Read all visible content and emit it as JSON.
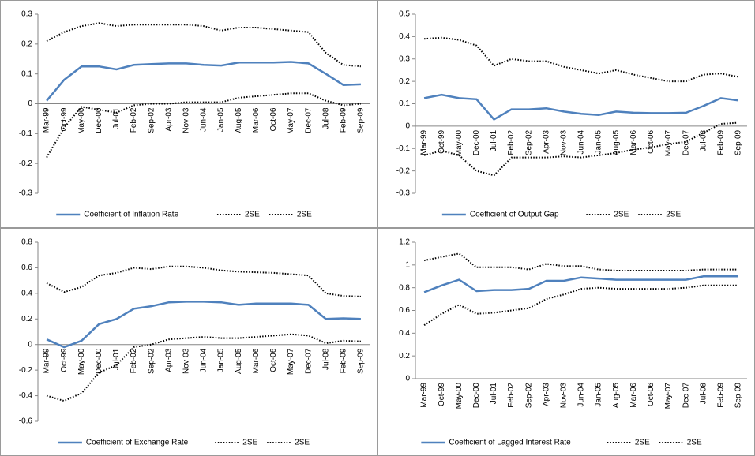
{
  "chart_data": [
    {
      "type": "line",
      "legend": "bottom",
      "ylim": [
        -0.3,
        0.3
      ],
      "yticks": [
        -0.3,
        -0.2,
        -0.1,
        0,
        0.1,
        0.2,
        0.3
      ],
      "categories": [
        "Mar-99",
        "Oct-99",
        "May-00",
        "Dec-00",
        "Jul-01",
        "Feb-02",
        "Sep-02",
        "Apr-03",
        "Nov-03",
        "Jun-04",
        "Jan-05",
        "Aug-05",
        "Mar-06",
        "Oct-06",
        "May-07",
        "Dec-07",
        "Jul-08",
        "Feb-09",
        "Sep-09"
      ],
      "series": [
        {
          "name": "Coefficient of Inflation Rate",
          "color": "#4f81bd",
          "style": "solid",
          "values": [
            0.01,
            0.08,
            0.125,
            0.125,
            0.115,
            0.13,
            0.133,
            0.135,
            0.135,
            0.13,
            0.128,
            0.138,
            0.138,
            0.138,
            0.14,
            0.135,
            0.1,
            0.063,
            0.065
          ]
        },
        {
          "name": "2SE",
          "color": "#000000",
          "style": "dotted",
          "values": [
            0.21,
            0.24,
            0.26,
            0.27,
            0.26,
            0.265,
            0.265,
            0.265,
            0.265,
            0.26,
            0.245,
            0.255,
            0.255,
            0.25,
            0.245,
            0.24,
            0.17,
            0.13,
            0.125
          ]
        },
        {
          "name": "2SE",
          "color": "#000000",
          "style": "dotted",
          "values": [
            -0.18,
            -0.08,
            -0.01,
            -0.02,
            -0.03,
            -0.005,
            0,
            0,
            0.005,
            0.005,
            0.005,
            0.02,
            0.025,
            0.03,
            0.035,
            0.035,
            0.01,
            -0.005,
            0
          ]
        }
      ]
    },
    {
      "type": "line",
      "legend": "bottom",
      "ylim": [
        -0.3,
        0.5
      ],
      "yticks": [
        -0.3,
        -0.2,
        -0.1,
        0,
        0.1,
        0.2,
        0.3,
        0.4,
        0.5
      ],
      "categories": [
        "Mar-99",
        "Oct-99",
        "May-00",
        "Dec-00",
        "Jul-01",
        "Feb-02",
        "Sep-02",
        "Apr-03",
        "Nov-03",
        "Jun-04",
        "Jan-05",
        "Aug-05",
        "Mar-06",
        "Oct-06",
        "May-07",
        "Dec-07",
        "Jul-08",
        "Feb-09",
        "Sep-09"
      ],
      "series": [
        {
          "name": "Coefficient of Output Gap",
          "color": "#4f81bd",
          "style": "solid",
          "values": [
            0.125,
            0.14,
            0.125,
            0.12,
            0.03,
            0.075,
            0.075,
            0.08,
            0.065,
            0.055,
            0.05,
            0.065,
            0.06,
            0.058,
            0.058,
            0.06,
            0.09,
            0.125,
            0.115
          ]
        },
        {
          "name": "2SE",
          "color": "#000000",
          "style": "dotted",
          "values": [
            0.39,
            0.395,
            0.385,
            0.36,
            0.27,
            0.3,
            0.29,
            0.29,
            0.265,
            0.25,
            0.235,
            0.25,
            0.23,
            0.215,
            0.2,
            0.2,
            0.23,
            0.235,
            0.22
          ]
        },
        {
          "name": "2SE",
          "color": "#000000",
          "style": "dotted",
          "values": [
            -0.13,
            -0.11,
            -0.13,
            -0.2,
            -0.22,
            -0.14,
            -0.14,
            -0.14,
            -0.135,
            -0.14,
            -0.13,
            -0.12,
            -0.105,
            -0.095,
            -0.08,
            -0.07,
            -0.03,
            0.01,
            0.015
          ]
        }
      ]
    },
    {
      "type": "line",
      "legend": "bottom",
      "ylim": [
        -0.6,
        0.8
      ],
      "yticks": [
        -0.6,
        -0.4,
        -0.2,
        0,
        0.2,
        0.4,
        0.6,
        0.8
      ],
      "categories": [
        "Mar-99",
        "Oct-99",
        "May-00",
        "Dec-00",
        "Jul-01",
        "Feb-02",
        "Sep-02",
        "Apr-03",
        "Nov-03",
        "Jun-04",
        "Jan-05",
        "Aug-05",
        "Mar-06",
        "Oct-06",
        "May-07",
        "Dec-07",
        "Jul-08",
        "Feb-09",
        "Sep-09"
      ],
      "series": [
        {
          "name": "Coefficient of Exchange Rate",
          "color": "#4f81bd",
          "style": "solid",
          "values": [
            0.04,
            -0.02,
            0.03,
            0.16,
            0.2,
            0.28,
            0.3,
            0.33,
            0.335,
            0.335,
            0.33,
            0.31,
            0.32,
            0.32,
            0.32,
            0.31,
            0.2,
            0.205,
            0.2
          ]
        },
        {
          "name": "2SE",
          "color": "#000000",
          "style": "dotted",
          "values": [
            0.48,
            0.41,
            0.45,
            0.54,
            0.56,
            0.6,
            0.59,
            0.61,
            0.61,
            0.6,
            0.58,
            0.57,
            0.565,
            0.56,
            0.55,
            0.54,
            0.4,
            0.38,
            0.375
          ]
        },
        {
          "name": "2SE",
          "color": "#000000",
          "style": "dotted",
          "values": [
            -0.4,
            -0.44,
            -0.38,
            -0.22,
            -0.16,
            -0.02,
            0,
            0.04,
            0.05,
            0.06,
            0.05,
            0.05,
            0.06,
            0.07,
            0.08,
            0.07,
            0.01,
            0.03,
            0.025
          ]
        }
      ]
    },
    {
      "type": "line",
      "legend": "bottom",
      "ylim": [
        0,
        1.2
      ],
      "yticks": [
        0,
        0.2,
        0.4,
        0.6,
        0.8,
        1,
        1.2
      ],
      "categories": [
        "Mar-99",
        "Oct-99",
        "May-00",
        "Dec-00",
        "Jul-01",
        "Feb-02",
        "Sep-02",
        "Apr-03",
        "Nov-03",
        "Jun-04",
        "Jan-05",
        "Aug-05",
        "Mar-06",
        "Oct-06",
        "May-07",
        "Dec-07",
        "Jul-08",
        "Feb-09",
        "Sep-09"
      ],
      "series": [
        {
          "name": "Coefficient of Lagged Interest Rate",
          "color": "#4f81bd",
          "style": "solid",
          "values": [
            0.76,
            0.82,
            0.87,
            0.77,
            0.78,
            0.78,
            0.79,
            0.86,
            0.86,
            0.89,
            0.88,
            0.87,
            0.87,
            0.87,
            0.87,
            0.87,
            0.9,
            0.9,
            0.9
          ]
        },
        {
          "name": "2SE",
          "color": "#000000",
          "style": "dotted",
          "values": [
            1.04,
            1.07,
            1.1,
            0.98,
            0.98,
            0.98,
            0.96,
            1.01,
            0.99,
            0.99,
            0.96,
            0.95,
            0.95,
            0.95,
            0.95,
            0.95,
            0.96,
            0.96,
            0.96
          ]
        },
        {
          "name": "2SE",
          "color": "#000000",
          "style": "dotted",
          "values": [
            0.47,
            0.57,
            0.65,
            0.57,
            0.58,
            0.6,
            0.62,
            0.7,
            0.74,
            0.79,
            0.8,
            0.79,
            0.79,
            0.79,
            0.79,
            0.8,
            0.82,
            0.82,
            0.82
          ]
        }
      ]
    }
  ]
}
